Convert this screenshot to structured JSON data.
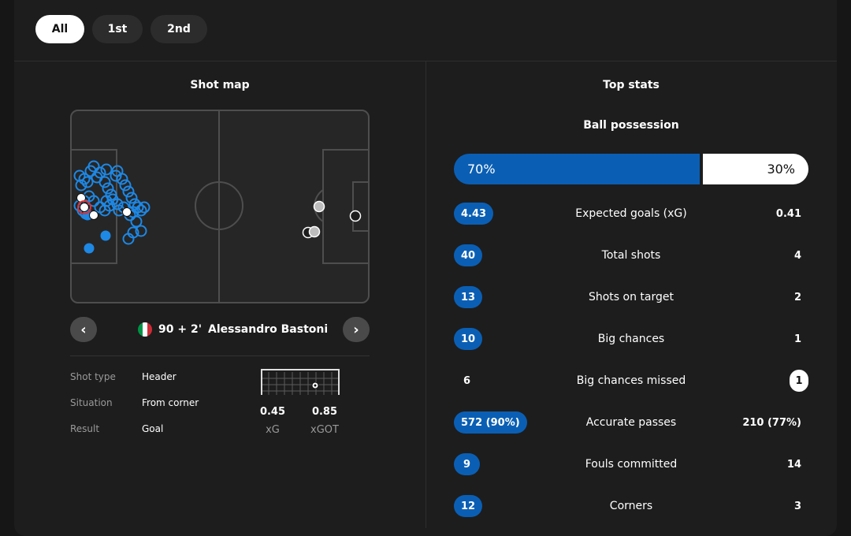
{
  "tabs": [
    {
      "label": "All",
      "active": true
    },
    {
      "label": "1st",
      "active": false
    },
    {
      "label": "2nd",
      "active": false
    }
  ],
  "shot_map": {
    "title": "Shot map",
    "selected_event": {
      "minute": "90 + 2'",
      "player": "Alessandro Bastoni",
      "flag_colors": [
        "#009246",
        "#ffffff",
        "#ce2b37"
      ]
    },
    "details": [
      {
        "label": "Shot type",
        "value": "Header"
      },
      {
        "label": "Situation",
        "value": "From corner"
      },
      {
        "label": "Result",
        "value": "Goal"
      }
    ],
    "xg": {
      "value": "0.45",
      "label": "xG"
    },
    "xgot": {
      "value": "0.85",
      "label": "xGOT"
    },
    "icons": {
      "prev": "chevron-left-icon",
      "next": "chevron-right-icon"
    }
  },
  "top_stats": {
    "title": "Top stats",
    "possession": {
      "label": "Ball possession",
      "home": "70%",
      "away": "30%",
      "home_share": 0.7
    },
    "rows": [
      {
        "label": "Expected goals (xG)",
        "home": "4.43",
        "away": "0.41",
        "winner": "home"
      },
      {
        "label": "Total shots",
        "home": "40",
        "away": "4",
        "winner": "home"
      },
      {
        "label": "Shots on target",
        "home": "13",
        "away": "2",
        "winner": "home"
      },
      {
        "label": "Big chances",
        "home": "10",
        "away": "1",
        "winner": "home"
      },
      {
        "label": "Big chances missed",
        "home": "6",
        "away": "1",
        "winner": "away"
      },
      {
        "label": "Accurate passes",
        "home": "572 (90%)",
        "away": "210 (77%)",
        "winner": "home"
      },
      {
        "label": "Fouls committed",
        "home": "9",
        "away": "14",
        "winner": "home"
      },
      {
        "label": "Corners",
        "home": "12",
        "away": "3",
        "winner": "home"
      }
    ]
  },
  "colors": {
    "home": "#0a5fb4",
    "away": "#ffffff",
    "panel": "#1d1d1d",
    "goal_marker": "#e03030"
  }
}
